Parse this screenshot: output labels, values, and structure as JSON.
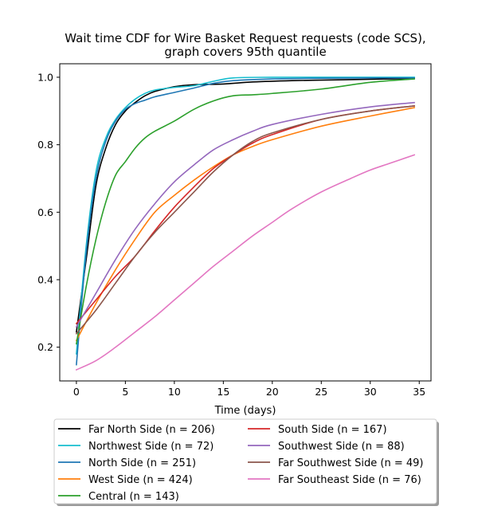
{
  "chart_data": {
    "type": "line",
    "title": [
      "Wait time CDF for Wire Basket Request  requests (code SCS),",
      "graph covers 95th quantile"
    ],
    "xlabel": "Time (days)",
    "ylabel": "",
    "xlim": [
      -1.7,
      36.2
    ],
    "ylim": [
      0.1,
      1.04
    ],
    "xticks": [
      0,
      5,
      10,
      15,
      20,
      25,
      30,
      35
    ],
    "yticks": [
      0.2,
      0.4,
      0.6,
      0.8,
      1.0
    ],
    "grid": false,
    "legend_placement": "below, two columns",
    "series": [
      {
        "name": "Far North Side (n = 206)",
        "color": "#000000",
        "points": [
          [
            0,
            0.245
          ],
          [
            1,
            0.46
          ],
          [
            2,
            0.68
          ],
          [
            3,
            0.79
          ],
          [
            4,
            0.86
          ],
          [
            5,
            0.9
          ],
          [
            6,
            0.925
          ],
          [
            7,
            0.945
          ],
          [
            8,
            0.958
          ],
          [
            10,
            0.972
          ],
          [
            12,
            0.978
          ],
          [
            15,
            0.98
          ],
          [
            18,
            0.986
          ],
          [
            22,
            0.99
          ],
          [
            26,
            0.992
          ],
          [
            30,
            0.994
          ],
          [
            34.5,
            0.996
          ]
        ]
      },
      {
        "name": "Northwest Side (n = 72)",
        "color": "#17becf",
        "points": [
          [
            0,
            0.18
          ],
          [
            1,
            0.5
          ],
          [
            2,
            0.72
          ],
          [
            3,
            0.82
          ],
          [
            4,
            0.875
          ],
          [
            5,
            0.91
          ],
          [
            6,
            0.935
          ],
          [
            7,
            0.952
          ],
          [
            8,
            0.962
          ],
          [
            10,
            0.97
          ],
          [
            12,
            0.975
          ],
          [
            14,
            0.988
          ],
          [
            16,
            0.998
          ],
          [
            20,
            1.0
          ],
          [
            25,
            1.0
          ],
          [
            30,
            1.0
          ],
          [
            34.5,
            1.0
          ]
        ]
      },
      {
        "name": "North Side (n = 251)",
        "color": "#1f77b4",
        "points": [
          [
            0,
            0.148
          ],
          [
            1,
            0.48
          ],
          [
            2,
            0.7
          ],
          [
            3,
            0.81
          ],
          [
            4,
            0.87
          ],
          [
            5,
            0.905
          ],
          [
            6,
            0.922
          ],
          [
            7,
            0.932
          ],
          [
            8,
            0.942
          ],
          [
            10,
            0.955
          ],
          [
            12,
            0.968
          ],
          [
            14,
            0.982
          ],
          [
            16,
            0.99
          ],
          [
            20,
            0.995
          ],
          [
            25,
            0.997
          ],
          [
            30,
            0.998
          ],
          [
            34.5,
            0.998
          ]
        ]
      },
      {
        "name": "West Side (n = 424)",
        "color": "#ff7f0e",
        "points": [
          [
            0,
            0.22
          ],
          [
            2,
            0.33
          ],
          [
            4,
            0.43
          ],
          [
            6,
            0.52
          ],
          [
            8,
            0.6
          ],
          [
            10,
            0.65
          ],
          [
            12,
            0.695
          ],
          [
            14,
            0.735
          ],
          [
            16,
            0.77
          ],
          [
            18,
            0.795
          ],
          [
            20,
            0.815
          ],
          [
            25,
            0.855
          ],
          [
            30,
            0.885
          ],
          [
            34.5,
            0.91
          ]
        ]
      },
      {
        "name": "Central (n = 143)",
        "color": "#2ca02c",
        "points": [
          [
            0,
            0.21
          ],
          [
            1,
            0.38
          ],
          [
            2,
            0.52
          ],
          [
            3,
            0.63
          ],
          [
            4,
            0.71
          ],
          [
            5,
            0.75
          ],
          [
            6,
            0.79
          ],
          [
            7,
            0.82
          ],
          [
            8,
            0.84
          ],
          [
            10,
            0.87
          ],
          [
            12,
            0.905
          ],
          [
            14,
            0.93
          ],
          [
            16,
            0.945
          ],
          [
            18,
            0.948
          ],
          [
            20,
            0.952
          ],
          [
            25,
            0.965
          ],
          [
            30,
            0.985
          ],
          [
            34.5,
            0.995
          ]
        ]
      },
      {
        "name": "South Side (n = 167)",
        "color": "#d62728",
        "points": [
          [
            0,
            0.27
          ],
          [
            2,
            0.34
          ],
          [
            4,
            0.41
          ],
          [
            6,
            0.47
          ],
          [
            8,
            0.545
          ],
          [
            10,
            0.615
          ],
          [
            12,
            0.675
          ],
          [
            14,
            0.73
          ],
          [
            16,
            0.77
          ],
          [
            18,
            0.805
          ],
          [
            20,
            0.83
          ],
          [
            25,
            0.875
          ],
          [
            30,
            0.9
          ],
          [
            34.5,
            0.915
          ]
        ]
      },
      {
        "name": "Southwest Side (n = 88)",
        "color": "#9467bd",
        "points": [
          [
            0,
            0.26
          ],
          [
            2,
            0.36
          ],
          [
            4,
            0.46
          ],
          [
            6,
            0.55
          ],
          [
            8,
            0.625
          ],
          [
            10,
            0.69
          ],
          [
            12,
            0.74
          ],
          [
            14,
            0.785
          ],
          [
            16,
            0.815
          ],
          [
            18,
            0.84
          ],
          [
            20,
            0.86
          ],
          [
            25,
            0.89
          ],
          [
            30,
            0.912
          ],
          [
            34.5,
            0.925
          ]
        ]
      },
      {
        "name": "Far Southwest Side (n = 49)",
        "color": "#8c564b",
        "points": [
          [
            0,
            0.24
          ],
          [
            2,
            0.31
          ],
          [
            4,
            0.39
          ],
          [
            6,
            0.47
          ],
          [
            8,
            0.54
          ],
          [
            10,
            0.6
          ],
          [
            12,
            0.66
          ],
          [
            14,
            0.72
          ],
          [
            16,
            0.77
          ],
          [
            18,
            0.81
          ],
          [
            20,
            0.835
          ],
          [
            25,
            0.875
          ],
          [
            30,
            0.9
          ],
          [
            34.5,
            0.915
          ]
        ]
      },
      {
        "name": "Far Southeast Side (n = 76)",
        "color": "#e377c2",
        "points": [
          [
            0,
            0.133
          ],
          [
            2,
            0.16
          ],
          [
            4,
            0.2
          ],
          [
            6,
            0.245
          ],
          [
            8,
            0.29
          ],
          [
            10,
            0.34
          ],
          [
            12,
            0.39
          ],
          [
            14,
            0.44
          ],
          [
            16,
            0.485
          ],
          [
            18,
            0.53
          ],
          [
            20,
            0.57
          ],
          [
            22,
            0.61
          ],
          [
            25,
            0.66
          ],
          [
            28,
            0.7
          ],
          [
            30,
            0.725
          ],
          [
            32,
            0.745
          ],
          [
            34.5,
            0.77
          ]
        ]
      }
    ]
  }
}
